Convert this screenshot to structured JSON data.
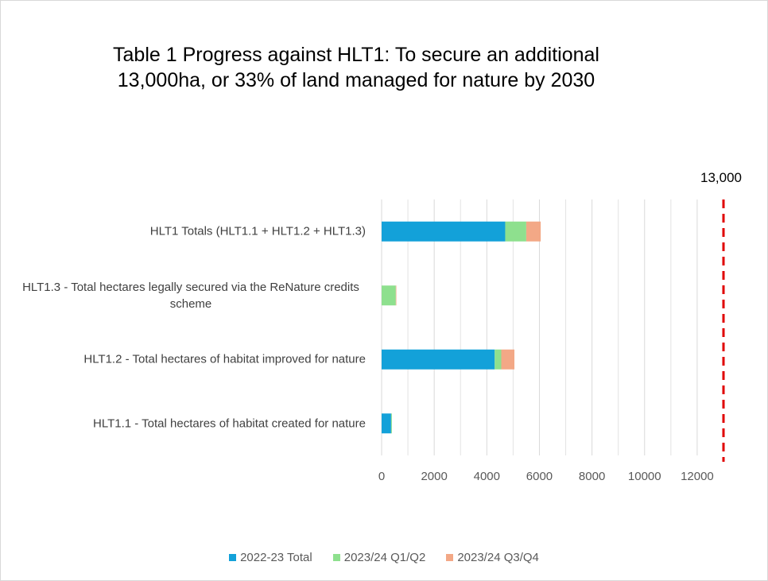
{
  "chart_data": {
    "type": "stacked_barh",
    "title": "Table 1 Progress against HLT1: To secure an additional 13,000ha, or 33% of land managed for nature by 2030",
    "categories": [
      "HLT1.1 - Total hectares of habitat created for nature",
      "HLT1.2 - Total hectares of habitat improved for nature",
      "HLT1.3 - Total hectares legally secured via the ReNature credits scheme",
      "HLT1  Totals (HLT1.1 + HLT1.2 + HLT1.3)"
    ],
    "series": [
      {
        "name": "2022-23 Total",
        "color": "#13a1d9",
        "values": [
          360,
          4300,
          0,
          4700
        ]
      },
      {
        "name": "2023/24 Q1/Q2",
        "color": "#8ee08e",
        "values": [
          30,
          250,
          540,
          800
        ]
      },
      {
        "name": "2023/24 Q3/Q4",
        "color": "#f3a886",
        "values": [
          0,
          500,
          20,
          550
        ]
      }
    ],
    "xlim": [
      0,
      13000
    ],
    "xticks": [
      0,
      2000,
      4000,
      6000,
      8000,
      10000,
      12000
    ],
    "minor_xticks": [
      1000,
      3000,
      5000,
      7000,
      9000,
      11000
    ],
    "grid": true,
    "target": {
      "value": 13000,
      "label": "13,000",
      "color": "#e00000"
    },
    "legend": "bottom"
  }
}
